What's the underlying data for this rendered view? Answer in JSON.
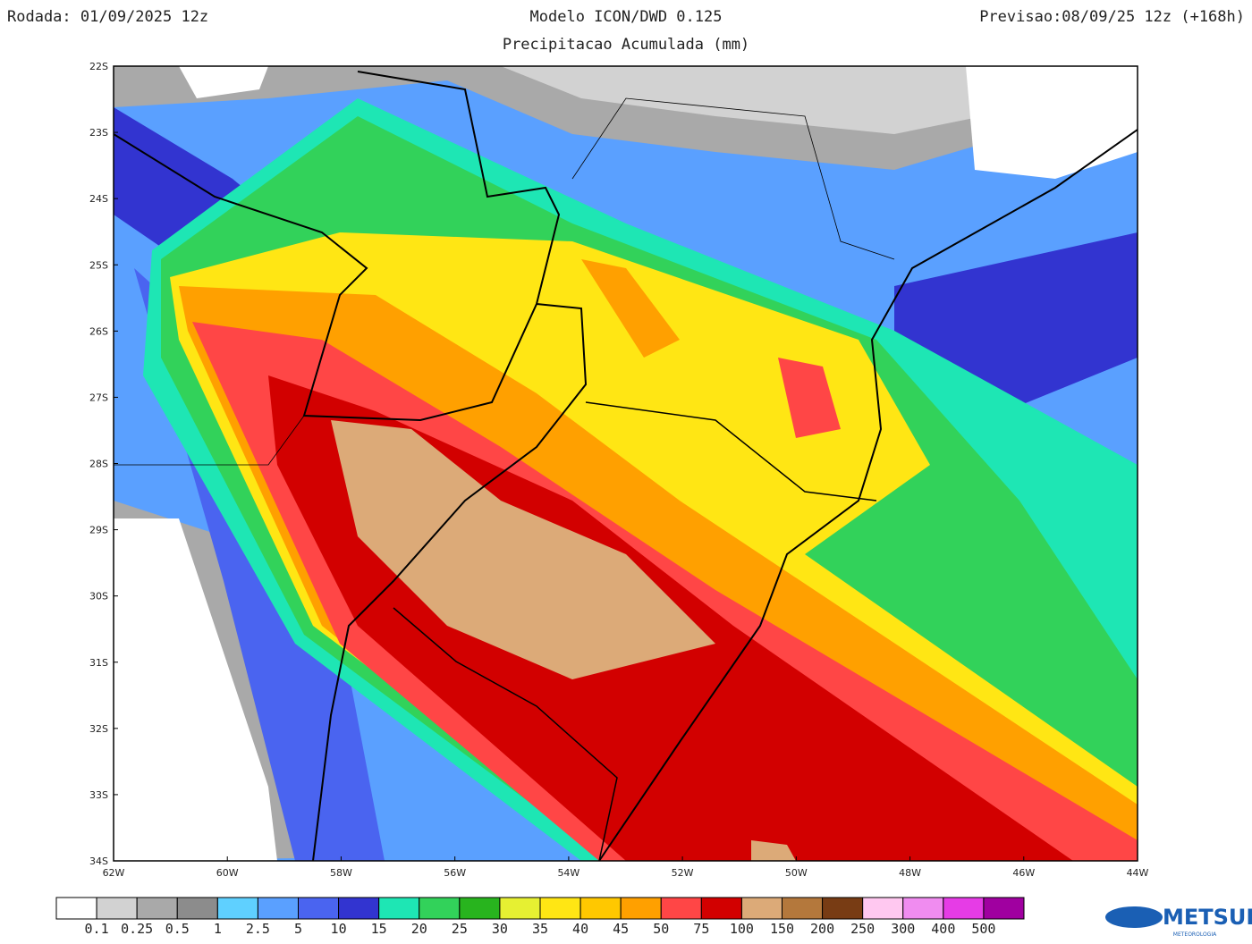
{
  "header": {
    "run": "Rodada: 01/09/2025 12z",
    "model": "Modelo ICON/DWD 0.125",
    "subtitle": "Precipitacao Acumulada (mm)",
    "forecast": "Previsao:08/09/25 12z (+168h)"
  },
  "map": {
    "lat_labels": [
      "22S",
      "23S",
      "24S",
      "25S",
      "26S",
      "27S",
      "28S",
      "29S",
      "30S",
      "31S",
      "32S",
      "33S",
      "34S"
    ],
    "lon_labels": [
      "62W",
      "60W",
      "58W",
      "56W",
      "54W",
      "52W",
      "50W",
      "48W",
      "46W",
      "44W"
    ]
  },
  "colorbar": {
    "colors": [
      "#ffffff",
      "#d2d2d2",
      "#a9a9a9",
      "#8c8c8c",
      "#5fd0ff",
      "#5aa0ff",
      "#4a64f0",
      "#3234d0",
      "#1ee6b4",
      "#32d25a",
      "#28b41e",
      "#e6f032",
      "#ffe614",
      "#ffc800",
      "#ffa000",
      "#ff4646",
      "#d20000",
      "#dcaa78",
      "#b4783c",
      "#783c14",
      "#ffc8f0",
      "#f08cf0",
      "#e63ce6",
      "#a000a0"
    ],
    "labels": [
      "0.1",
      "0.25",
      "0.5",
      "1",
      "2.5",
      "5",
      "10",
      "15",
      "20",
      "25",
      "30",
      "35",
      "40",
      "45",
      "50",
      "75",
      "100",
      "150",
      "200",
      "250",
      "300",
      "400",
      "500"
    ]
  },
  "logo": {
    "name": "METSUL",
    "tagline": "METEOROLOGIA"
  }
}
